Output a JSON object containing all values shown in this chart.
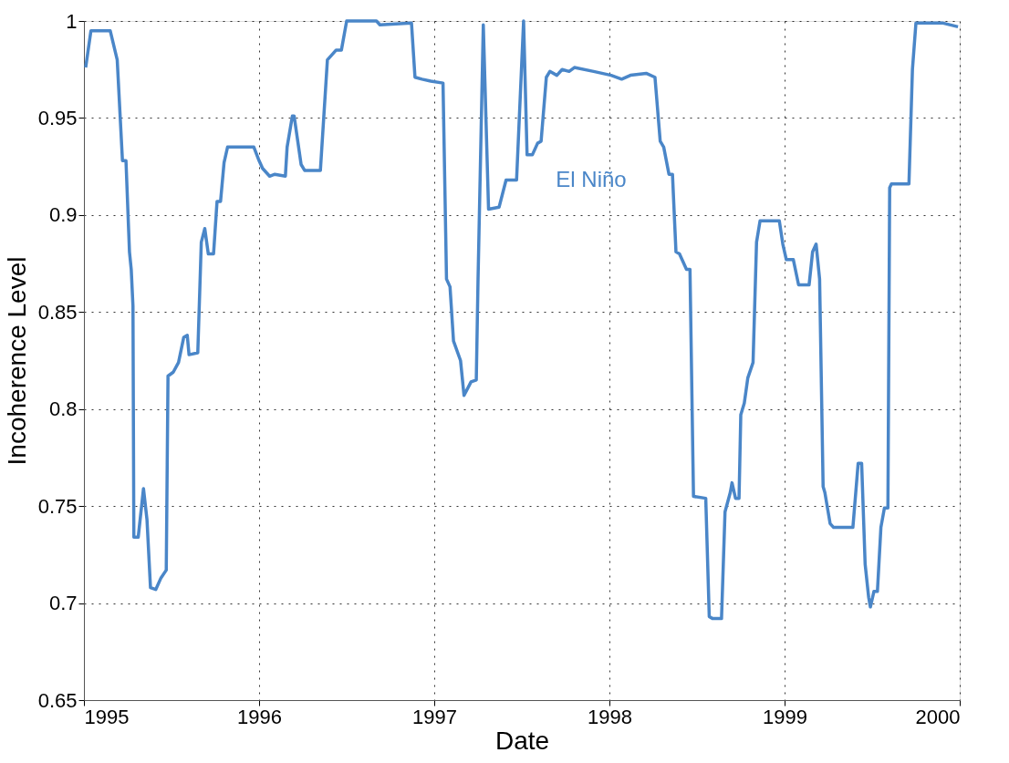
{
  "chart_data": {
    "type": "line",
    "xlabel": "Date",
    "ylabel": "Incoherence Level",
    "xlim": [
      1995,
      2000
    ],
    "xticks": [
      1995,
      1996,
      1997,
      1998,
      1999,
      2000
    ],
    "ylim": [
      0.65,
      1
    ],
    "yticks": [
      0.65,
      0.7,
      0.75,
      0.8,
      0.85,
      0.9,
      0.95,
      1
    ],
    "grid": true,
    "line_style": "solid",
    "marker": "none",
    "annotations": [
      "El Niño"
    ],
    "series": [
      {
        "color": "#4a86c8",
        "x": [
          1995.01,
          1995.04,
          1995.07,
          1995.15,
          1995.19,
          1995.22,
          1995.24,
          1995.26,
          1995.27,
          1995.28,
          1995.285,
          1995.31,
          1995.34,
          1995.36,
          1995.38,
          1995.41,
          1995.44,
          1995.47,
          1995.48,
          1995.51,
          1995.54,
          1995.57,
          1995.59,
          1995.6,
          1995.65,
          1995.67,
          1995.69,
          1995.71,
          1995.74,
          1995.76,
          1995.78,
          1995.8,
          1995.82,
          1995.97,
          1996.0,
          1996.02,
          1996.06,
          1996.09,
          1996.15,
          1996.16,
          1996.19,
          1996.2,
          1996.24,
          1996.26,
          1996.35,
          1996.39,
          1996.41,
          1996.44,
          1996.47,
          1996.5,
          1996.67,
          1996.69,
          1996.87,
          1996.89,
          1996.93,
          1996.98,
          1997.05,
          1997.07,
          1997.09,
          1997.11,
          1997.15,
          1997.17,
          1997.21,
          1997.24,
          1997.25,
          1997.28,
          1997.31,
          1997.37,
          1997.41,
          1997.47,
          1997.51,
          1997.53,
          1997.56,
          1997.59,
          1997.61,
          1997.64,
          1997.66,
          1997.7,
          1997.73,
          1997.77,
          1997.8,
          1997.91,
          1998.01,
          1998.07,
          1998.12,
          1998.21,
          1998.26,
          1998.29,
          1998.31,
          1998.34,
          1998.36,
          1998.38,
          1998.4,
          1998.44,
          1998.46,
          1998.48,
          1998.55,
          1998.57,
          1998.59,
          1998.64,
          1998.66,
          1998.69,
          1998.7,
          1998.72,
          1998.74,
          1998.75,
          1998.77,
          1998.79,
          1998.82,
          1998.84,
          1998.86,
          1998.97,
          1998.99,
          1999.01,
          1999.05,
          1999.08,
          1999.14,
          1999.16,
          1999.18,
          1999.2,
          1999.22,
          1999.23,
          1999.26,
          1999.28,
          1999.39,
          1999.42,
          1999.44,
          1999.46,
          1999.48,
          1999.49,
          1999.51,
          1999.53,
          1999.55,
          1999.57,
          1999.59,
          1999.6,
          1999.61,
          1999.71,
          1999.73,
          1999.75,
          1999.9,
          1999.99
        ],
        "values": [
          0.976,
          0.995,
          0.995,
          0.995,
          0.98,
          0.928,
          0.928,
          0.881,
          0.872,
          0.853,
          0.734,
          0.734,
          0.759,
          0.743,
          0.708,
          0.707,
          0.713,
          0.717,
          0.817,
          0.819,
          0.824,
          0.837,
          0.838,
          0.828,
          0.829,
          0.886,
          0.893,
          0.88,
          0.88,
          0.907,
          0.907,
          0.927,
          0.935,
          0.935,
          0.928,
          0.924,
          0.92,
          0.921,
          0.92,
          0.935,
          0.951,
          0.951,
          0.926,
          0.923,
          0.923,
          0.98,
          0.982,
          0.985,
          0.985,
          1.0,
          1.0,
          0.998,
          0.999,
          0.971,
          0.97,
          0.969,
          0.968,
          0.867,
          0.863,
          0.835,
          0.825,
          0.807,
          0.814,
          0.815,
          0.867,
          0.998,
          0.903,
          0.904,
          0.918,
          0.918,
          1.0,
          0.931,
          0.931,
          0.937,
          0.938,
          0.971,
          0.974,
          0.972,
          0.975,
          0.974,
          0.976,
          0.974,
          0.972,
          0.97,
          0.972,
          0.973,
          0.971,
          0.938,
          0.935,
          0.921,
          0.921,
          0.881,
          0.88,
          0.872,
          0.872,
          0.755,
          0.754,
          0.693,
          0.692,
          0.692,
          0.747,
          0.757,
          0.762,
          0.754,
          0.754,
          0.797,
          0.803,
          0.816,
          0.824,
          0.886,
          0.897,
          0.897,
          0.885,
          0.877,
          0.877,
          0.864,
          0.864,
          0.881,
          0.885,
          0.867,
          0.76,
          0.757,
          0.741,
          0.739,
          0.739,
          0.772,
          0.772,
          0.72,
          0.703,
          0.698,
          0.706,
          0.706,
          0.739,
          0.749,
          0.749,
          0.914,
          0.916,
          0.916,
          0.975,
          0.999,
          0.999,
          0.997
        ]
      }
    ]
  }
}
